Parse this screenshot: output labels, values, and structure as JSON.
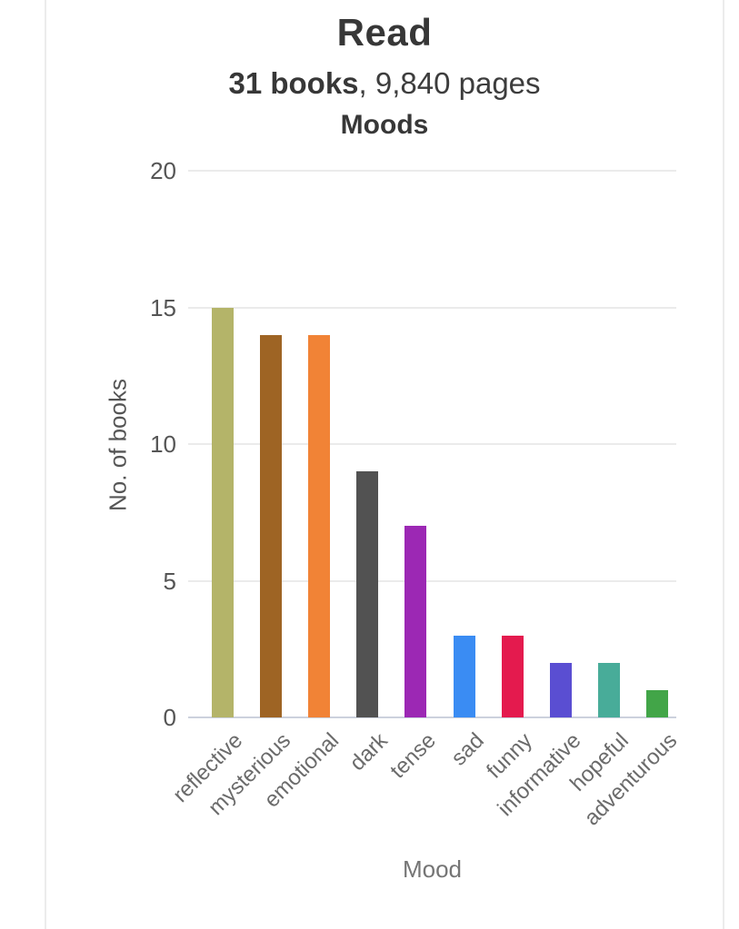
{
  "header": {
    "title": "Read",
    "subtitle_bold": "31 books",
    "subtitle_rest": ", 9,840 pages",
    "section_title": "Moods"
  },
  "chart_data": {
    "type": "bar",
    "title": "Moods",
    "xlabel": "Mood",
    "ylabel": "No. of books",
    "ylim": [
      0,
      20
    ],
    "yticks": [
      0,
      5,
      10,
      15,
      20
    ],
    "grid": true,
    "legend": "none",
    "categories": [
      "reflective",
      "mysterious",
      "emotional",
      "dark",
      "tense",
      "sad",
      "funny",
      "informative",
      "hopeful",
      "adventurous"
    ],
    "values": [
      15,
      14,
      14,
      9,
      7,
      3,
      3,
      2,
      2,
      1
    ],
    "bar_colors": [
      "#b4b469",
      "#9e6424",
      "#f18336",
      "#525252",
      "#9c28b4",
      "#3a8cf3",
      "#e41a4e",
      "#5a4ed2",
      "#48ac99",
      "#42a548"
    ]
  },
  "colors": {
    "card_border": "#ececec",
    "gridline": "#ebebeb",
    "axis_baseline": "#ccd1dd",
    "tick_text": "#555555",
    "xlabel_text": "#6b6b6b",
    "title_text": "#373737"
  }
}
